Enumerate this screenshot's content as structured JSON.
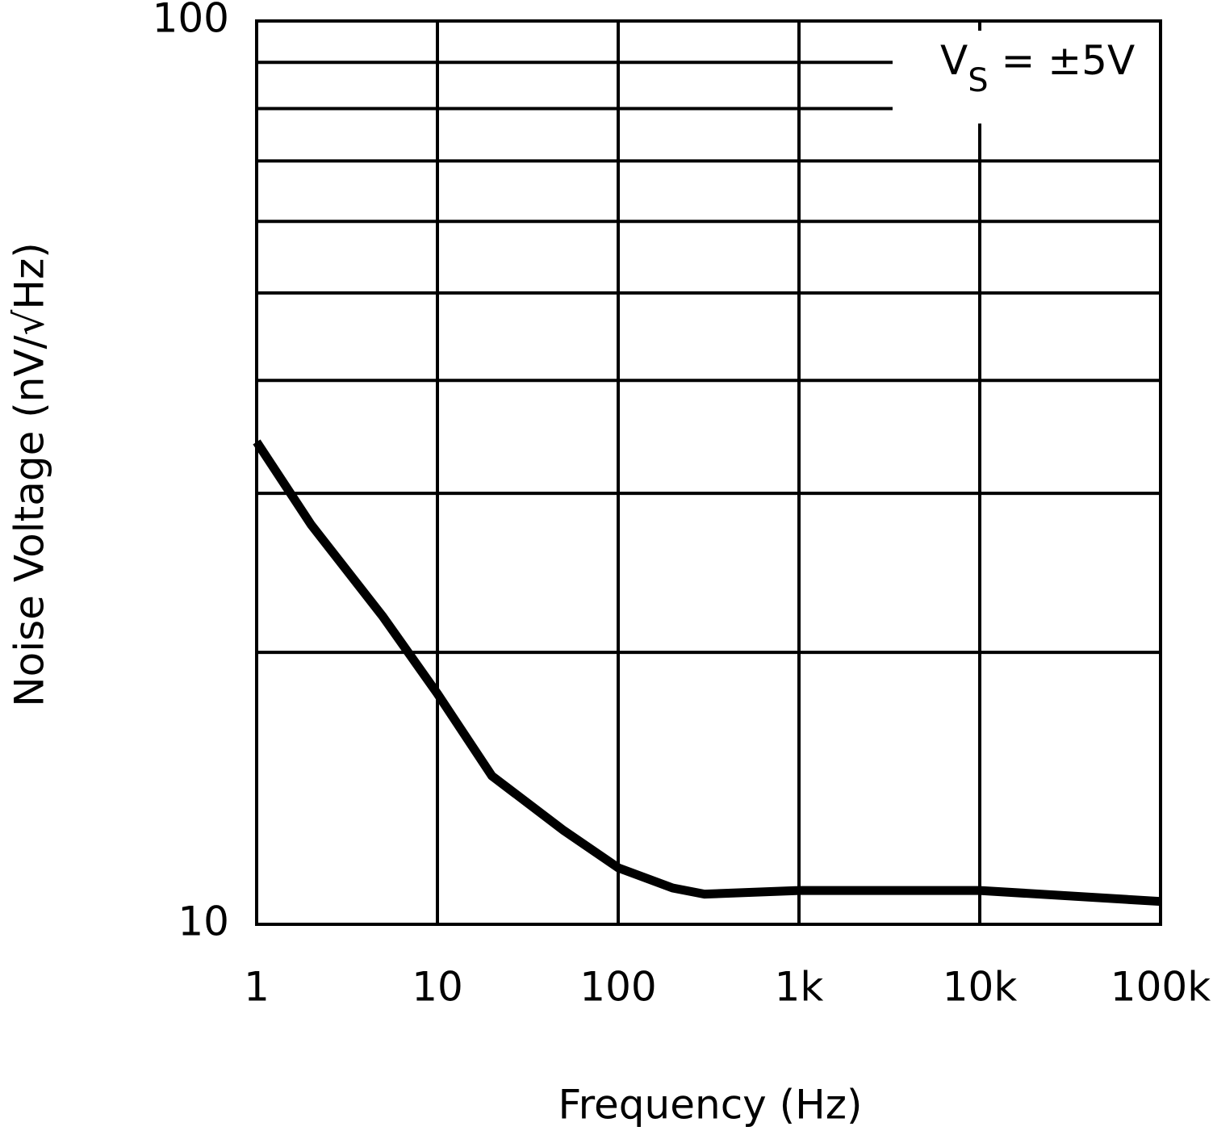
{
  "chart_data": {
    "type": "line",
    "xlabel": "Frequency (Hz)",
    "ylabel": "Noise Voltage (nV/√Hz)",
    "annotation": {
      "main": "V",
      "subscript": "S",
      "tail": " = ±5V"
    },
    "xscale": "log",
    "yscale": "log",
    "grid": true,
    "xlim": [
      1,
      100000
    ],
    "ylim": [
      10,
      100
    ],
    "xticks": [
      1,
      10,
      100,
      {
        "value": 1000,
        "label": "1k"
      },
      {
        "value": 10000,
        "label": "10k"
      },
      {
        "value": 100000,
        "label": "100k"
      }
    ],
    "yticks": [
      10,
      100
    ],
    "yminorticks": [
      20,
      30,
      40,
      50,
      60,
      70,
      80,
      90
    ],
    "series": [
      {
        "color": "#000000",
        "x": [
          1,
          2,
          5,
          10,
          20,
          50,
          100,
          200,
          300,
          1000,
          10000,
          100000
        ],
        "values": [
          34.2,
          27.7,
          21.9,
          18.0,
          14.6,
          12.7,
          11.55,
          10.97,
          10.8,
          10.9,
          10.9,
          10.6
        ]
      }
    ]
  }
}
